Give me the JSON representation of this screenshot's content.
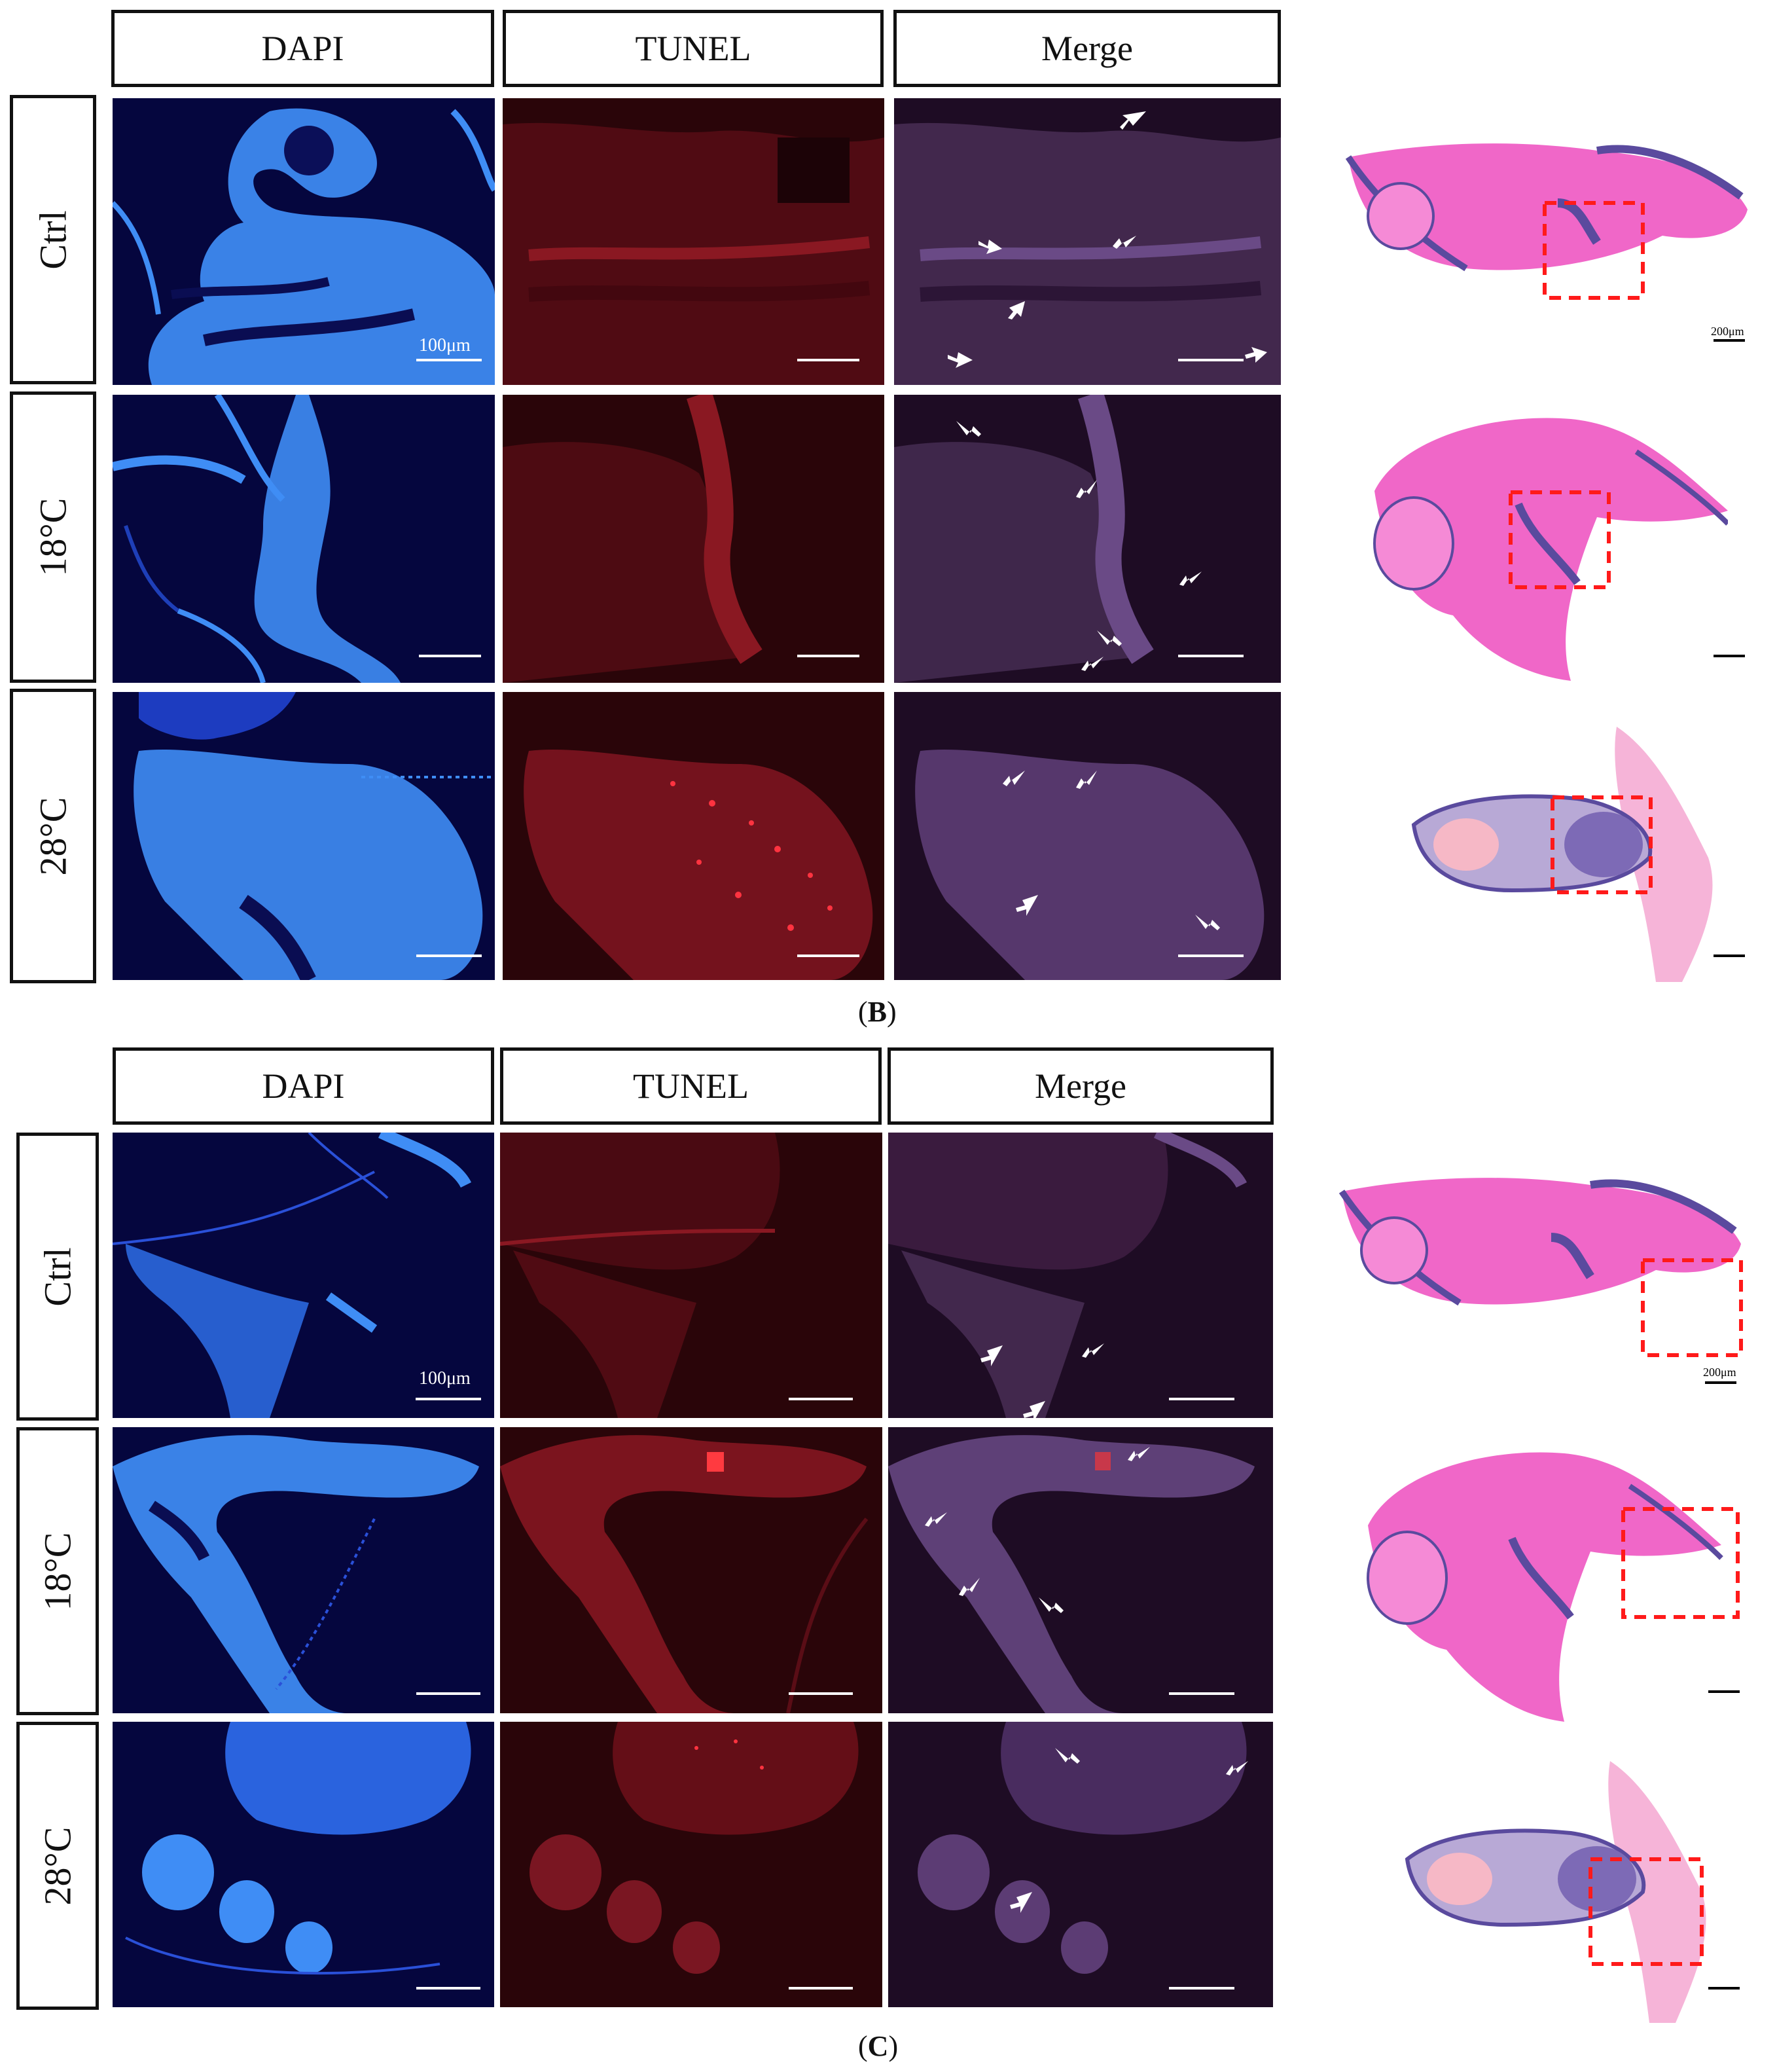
{
  "column_headers": [
    "DAPI",
    "TUNEL",
    "Merge"
  ],
  "row_headers": [
    "Ctrl",
    "18°C",
    "28°C"
  ],
  "scale_label_fluorescence": "100μm",
  "scale_label_he": "200μm",
  "captions": {
    "B": {
      "open": "(",
      "letter": "B",
      "close": ")"
    },
    "C": {
      "open": "(",
      "letter": "C",
      "close": ")"
    }
  },
  "colors": {
    "dapi_background": "#05063e",
    "dapi_tissue": "#3f8df5",
    "tunel_background": "#2a0509",
    "tunel_tissue": "#9b1a24",
    "merge_background": "#1e0c24",
    "merge_tissue": "#6a4a86",
    "he_tissue": "#f067c8",
    "he_nuclei": "#5a4a9e",
    "roi_box": "#ff1a1a",
    "arrow": "#ffffff"
  }
}
